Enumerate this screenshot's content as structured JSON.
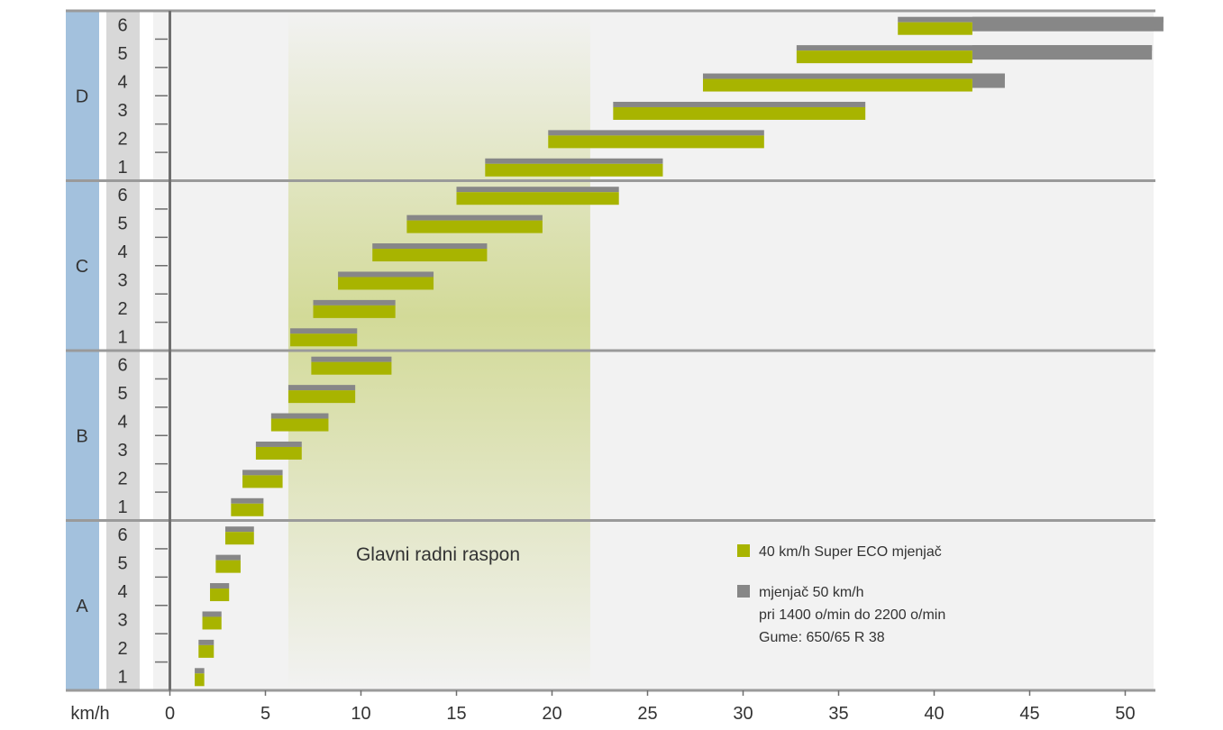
{
  "chart_data": {
    "type": "bar",
    "orientation": "horizontal-range",
    "x_unit_label": "km/h",
    "xlim": [
      0,
      52
    ],
    "x_ticks": [
      0,
      5,
      10,
      15,
      20,
      25,
      30,
      35,
      40,
      45,
      50
    ],
    "grid": false,
    "groups": [
      {
        "name": "A",
        "gears": [
          {
            "gear": "1",
            "eco": [
              1.3,
              1.8
            ],
            "std": [
              1.3,
              1.8
            ]
          },
          {
            "gear": "2",
            "eco": [
              1.5,
              2.3
            ],
            "std": [
              1.5,
              2.3
            ]
          },
          {
            "gear": "3",
            "eco": [
              1.7,
              2.7
            ],
            "std": [
              1.7,
              2.7
            ]
          },
          {
            "gear": "4",
            "eco": [
              2.1,
              3.1
            ],
            "std": [
              2.1,
              3.1
            ]
          },
          {
            "gear": "5",
            "eco": [
              2.4,
              3.7
            ],
            "std": [
              2.4,
              3.7
            ]
          },
          {
            "gear": "6",
            "eco": [
              2.9,
              4.4
            ],
            "std": [
              2.9,
              4.4
            ]
          }
        ]
      },
      {
        "name": "B",
        "gears": [
          {
            "gear": "1",
            "eco": [
              3.2,
              4.9
            ],
            "std": [
              3.2,
              4.9
            ]
          },
          {
            "gear": "2",
            "eco": [
              3.8,
              5.9
            ],
            "std": [
              3.8,
              5.9
            ]
          },
          {
            "gear": "3",
            "eco": [
              4.5,
              6.9
            ],
            "std": [
              4.5,
              6.9
            ]
          },
          {
            "gear": "4",
            "eco": [
              5.3,
              8.3
            ],
            "std": [
              5.3,
              8.3
            ]
          },
          {
            "gear": "5",
            "eco": [
              6.2,
              9.7
            ],
            "std": [
              6.2,
              9.7
            ]
          },
          {
            "gear": "6",
            "eco": [
              7.4,
              11.6
            ],
            "std": [
              7.4,
              11.6
            ]
          }
        ]
      },
      {
        "name": "C",
        "gears": [
          {
            "gear": "1",
            "eco": [
              6.3,
              9.8
            ],
            "std": [
              6.3,
              9.8
            ]
          },
          {
            "gear": "2",
            "eco": [
              7.5,
              11.8
            ],
            "std": [
              7.5,
              11.8
            ]
          },
          {
            "gear": "3",
            "eco": [
              8.8,
              13.8
            ],
            "std": [
              8.8,
              13.8
            ]
          },
          {
            "gear": "4",
            "eco": [
              10.6,
              16.6
            ],
            "std": [
              10.6,
              16.6
            ]
          },
          {
            "gear": "5",
            "eco": [
              12.4,
              19.5
            ],
            "std": [
              12.4,
              19.5
            ]
          },
          {
            "gear": "6",
            "eco": [
              15.0,
              23.5
            ],
            "std": [
              15.0,
              23.5
            ]
          }
        ]
      },
      {
        "name": "D",
        "gears": [
          {
            "gear": "1",
            "eco": [
              16.5,
              25.8
            ],
            "std": [
              16.5,
              25.8
            ]
          },
          {
            "gear": "2",
            "eco": [
              19.8,
              31.1
            ],
            "std": [
              19.8,
              31.1
            ]
          },
          {
            "gear": "3",
            "eco": [
              23.2,
              36.4
            ],
            "std": [
              23.2,
              36.4
            ]
          },
          {
            "gear": "4",
            "eco": [
              27.9,
              42.0
            ],
            "std": [
              27.9,
              43.7
            ]
          },
          {
            "gear": "5",
            "eco": [
              32.8,
              42.0
            ],
            "std": [
              32.8,
              51.4
            ]
          },
          {
            "gear": "6",
            "eco": [
              38.1,
              42.0
            ],
            "std": [
              38.1,
              52.0
            ]
          }
        ]
      }
    ],
    "highlight_range": {
      "label": "Glavni radni raspon",
      "x": [
        6.2,
        22.0
      ]
    },
    "legend": {
      "position": "bottom-right",
      "eco_label": "40 km/h Super ECO mjenjač",
      "std_lines": [
        "mjenjač 50 km/h",
        "pri 1400 o/min do 2200 o/min",
        "Gume: 650/65 R 38"
      ]
    },
    "colors": {
      "eco": "#a8b400",
      "std": "#878787",
      "group_band": "#a3c1dd",
      "gear_band": "#d8d8d8",
      "plot_bg": "#f2f2f2",
      "separator": "#9a9a9a",
      "axis": "#6e6e6e",
      "highlight": "#c8d27a"
    }
  }
}
